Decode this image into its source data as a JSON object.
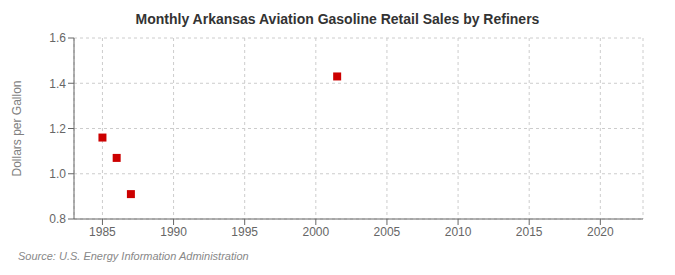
{
  "chart_data": {
    "type": "scatter",
    "title": "Monthly Arkansas Aviation Gasoline Retail Sales by Refiners",
    "ylabel": "Dollars per Gallon",
    "annotations": [
      "Source: U.S. Energy Information Administration"
    ],
    "x": [
      1985.0,
      1986.0,
      1987.0,
      2001.5
    ],
    "values": [
      1.16,
      1.07,
      0.91,
      1.43
    ],
    "color": "#cc0000",
    "marker": "square",
    "xlim": [
      1983,
      2023
    ],
    "ylim": [
      0.8,
      1.6
    ],
    "xticks": [
      1985,
      1990,
      1995,
      2000,
      2005,
      2010,
      2015,
      2020
    ],
    "yticks": [
      0.8,
      {
        "value": 1.0,
        "label": "1.0"
      },
      1.2,
      1.4,
      1.6
    ],
    "grid": true
  }
}
